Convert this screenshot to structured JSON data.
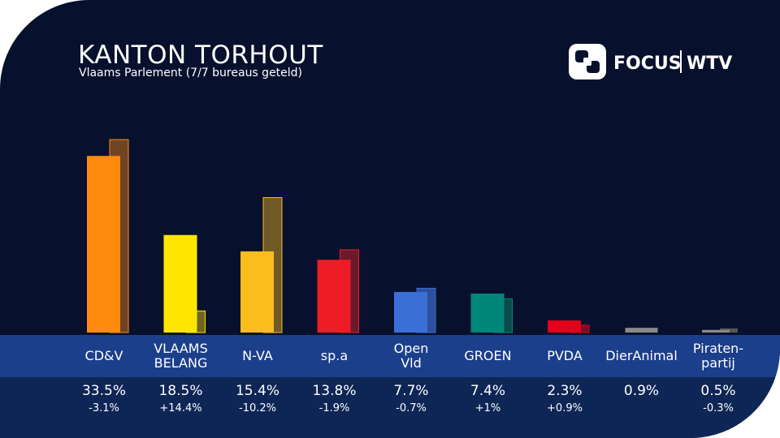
{
  "header": {
    "title": "KANTON TORHOUT",
    "subtitle": "Vlaams Parlement (7/7 bureaus geteld)"
  },
  "logo": {
    "text_left": "FOCUS",
    "text_right": "WTV",
    "icon": "focus-wtv-logo-icon"
  },
  "colors": {
    "background": "#07112d",
    "label_band": "#1c3f8b",
    "value_band": "#0e2656"
  },
  "chart_data": {
    "type": "bar",
    "categories": [
      "CD&V",
      "VLAAMS\nBELANG",
      "N-VA",
      "sp.a",
      "Open\nVld",
      "GROEN",
      "PVDA",
      "DierAnimal",
      "Piraten-\npartij"
    ],
    "series": [
      {
        "values": [
          33.5,
          18.5,
          15.4,
          13.8,
          7.7,
          7.4,
          2.3,
          0.9,
          0.5
        ]
      },
      {
        "values": [
          36.6,
          4.1,
          25.6,
          15.7,
          8.4,
          6.4,
          1.4,
          null,
          0.8
        ]
      }
    ],
    "value_labels": [
      "33.5%",
      "18.5%",
      "15.4%",
      "13.8%",
      "7.7%",
      "7.4%",
      "2.3%",
      "0.9%",
      "0.5%"
    ],
    "diff_labels": [
      "-3.1%",
      "+14.4%",
      "-10.2%",
      "-1.9%",
      "-0.7%",
      "+1%",
      "+0.9%",
      "",
      "-0.3%"
    ],
    "bar_colors": [
      "#ff8a0c",
      "#ffe600",
      "#fbbd1e",
      "#ee1c25",
      "#3a6fd6",
      "#00877a",
      "#e2001a",
      "#8a8a8a",
      "#8a8a8a"
    ],
    "prev_colors": [
      "#6e4424",
      "#6f6420",
      "#6f5a28",
      "#6a1a2c",
      "#2f4f9a",
      "#0c4a4c",
      "#701424",
      "#555555",
      "#555555"
    ],
    "ylim": [
      0,
      40
    ]
  }
}
